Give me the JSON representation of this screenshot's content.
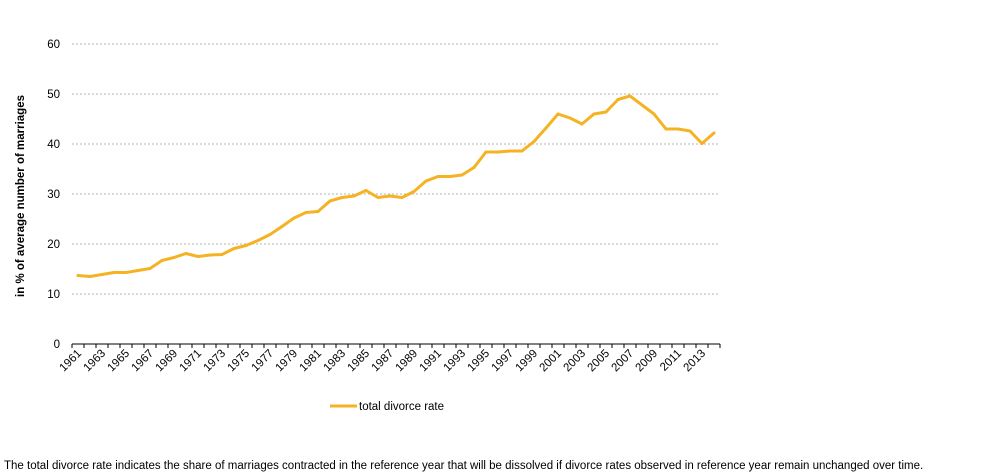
{
  "chart_data": {
    "type": "line",
    "title": "",
    "xlabel": "",
    "ylabel": "in % of average number of marriages",
    "ylim": [
      0,
      60
    ],
    "yticks": [
      0,
      10,
      20,
      30,
      40,
      50,
      60
    ],
    "grid": true,
    "legend_position": "bottom",
    "x": [
      1961,
      1962,
      1963,
      1964,
      1965,
      1966,
      1967,
      1968,
      1969,
      1970,
      1971,
      1972,
      1973,
      1974,
      1975,
      1976,
      1977,
      1978,
      1979,
      1980,
      1981,
      1982,
      1983,
      1984,
      1985,
      1986,
      1987,
      1988,
      1989,
      1990,
      1991,
      1992,
      1993,
      1994,
      1995,
      1996,
      1997,
      1998,
      1999,
      2000,
      2001,
      2002,
      2003,
      2004,
      2005,
      2006,
      2007,
      2008,
      2009,
      2010,
      2011,
      2012,
      2013,
      2014
    ],
    "xtick_labels": [
      "1961",
      "1963",
      "1965",
      "1967",
      "1969",
      "1971",
      "1973",
      "1975",
      "1977",
      "1979",
      "1981",
      "1983",
      "1985",
      "1987",
      "1989",
      "1991",
      "1993",
      "1995",
      "1997",
      "1999",
      "2001",
      "2003",
      "2005",
      "2007",
      "2009",
      "2011",
      "2013"
    ],
    "series": [
      {
        "name": "total divorce rate",
        "color": "#f5b324",
        "values": [
          13.7,
          13.5,
          13.9,
          14.3,
          14.3,
          14.7,
          15.1,
          16.7,
          17.3,
          18.1,
          17.5,
          17.8,
          17.9,
          19.1,
          19.7,
          20.7,
          21.9,
          23.5,
          25.2,
          26.3,
          26.5,
          28.6,
          29.3,
          29.6,
          30.7,
          29.3,
          29.6,
          29.3,
          30.5,
          32.6,
          33.5,
          33.5,
          33.8,
          35.3,
          38.4,
          38.4,
          38.6,
          38.6,
          40.5,
          43.2,
          46.0,
          45.2,
          44.0,
          46.0,
          46.4,
          48.9,
          49.6,
          47.8,
          46.0,
          43.0,
          43.0,
          42.6,
          40.1,
          42.2
        ]
      }
    ]
  },
  "footnote": "The total divorce rate indicates the share of marriages contracted in the reference year that will be dissolved if divorce rates observed in reference year remain unchanged over time."
}
